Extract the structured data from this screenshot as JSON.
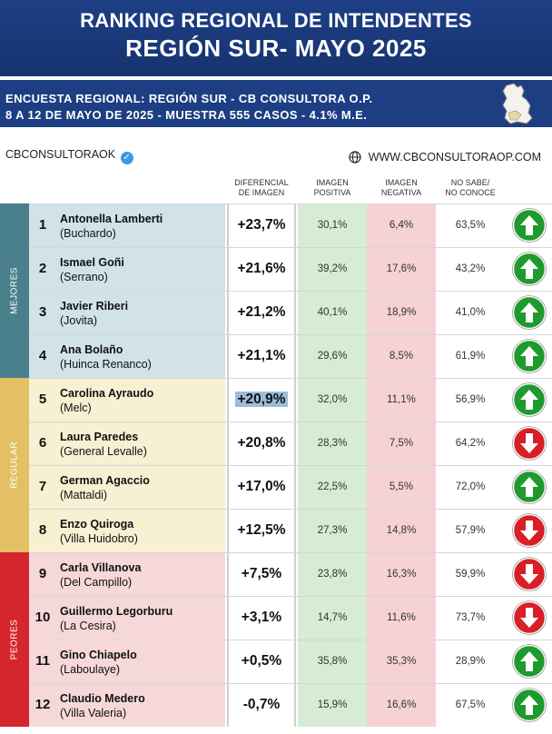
{
  "header": {
    "title_line1": "RANKING REGIONAL DE INTENDENTES",
    "title_line2": "REGIÓN SUR- MAYO 2025"
  },
  "subheader": {
    "line1": "ENCUESTA REGIONAL: REGIÓN SUR - CB CONSULTORA O.P.",
    "line2": "8 A 12 DE MAYO  DE 2025 - MUESTRA 555 CASOS - 4.1% M.E.",
    "map_icon": "province-map-icon"
  },
  "brand": {
    "handle": "CBCONSULTORAOK",
    "verified_icon": "verified-badge-icon",
    "website": "WWW.CBCONSULTORAOP.COM",
    "globe_icon": "globe-icon"
  },
  "columns": {
    "diff": [
      "DIFERENCIAL",
      "DE IMAGEN"
    ],
    "pos": [
      "IMAGEN",
      "POSITIVA"
    ],
    "neg": [
      "IMAGEN",
      "NEGATIVA"
    ],
    "ns": [
      "NO SABE/",
      "NO CONOCE"
    ]
  },
  "groups": [
    {
      "label": "MEJORES",
      "color": "#4a7f8c",
      "row_color": "#d1e3e8",
      "from": 0,
      "to": 3
    },
    {
      "label": "REGULAR",
      "color": "#e2c063",
      "row_color": "#f8f0d3",
      "from": 4,
      "to": 7
    },
    {
      "label": "PEORES",
      "color": "#d6262d",
      "row_color": "#f6d8d9",
      "from": 8,
      "to": 11
    }
  ],
  "colors": {
    "header_blue": "#1e3f86",
    "positive_bg": "#d6ecd4",
    "negative_bg": "#f6d2d4",
    "arrow_up": "#1f9a2e",
    "arrow_down": "#d81f26"
  },
  "chart_data": {
    "type": "table",
    "rows": [
      {
        "rank": "1",
        "name": "Antonella Lamberti",
        "place": "(Buchardo)",
        "diff": "+23,7%",
        "pos": "30,1%",
        "neg": "6,4%",
        "ns": "63,5%",
        "trend": "up"
      },
      {
        "rank": "2",
        "name": "Ismael Goñi",
        "place": "(Serrano)",
        "diff": "+21,6%",
        "pos": "39,2%",
        "neg": "17,6%",
        "ns": "43,2%",
        "trend": "up"
      },
      {
        "rank": "3",
        "name": "Javier Riberi",
        "place": "(Jovita)",
        "diff": "+21,2%",
        "pos": "40,1%",
        "neg": "18,9%",
        "ns": "41,0%",
        "trend": "up"
      },
      {
        "rank": "4",
        "name": "Ana Bolaño",
        "place": "(Huinca Renanco)",
        "diff": "+21,1%",
        "pos": "29,6%",
        "neg": "8,5%",
        "ns": "61,9%",
        "trend": "up"
      },
      {
        "rank": "5",
        "name": "Carolina Ayraudo",
        "place": "(Melc)",
        "diff": "+20,9%",
        "pos": "32,0%",
        "neg": "11,1%",
        "ns": "56,9%",
        "trend": "up",
        "highlight": true
      },
      {
        "rank": "6",
        "name": "Laura Paredes",
        "place": "(General Levalle)",
        "diff": "+20,8%",
        "pos": "28,3%",
        "neg": "7,5%",
        "ns": "64,2%",
        "trend": "down"
      },
      {
        "rank": "7",
        "name": "German Agaccio",
        "place": "(Mattaldi)",
        "diff": "+17,0%",
        "pos": "22,5%",
        "neg": "5,5%",
        "ns": "72,0%",
        "trend": "up"
      },
      {
        "rank": "8",
        "name": "Enzo Quiroga",
        "place": "(Villa Huidobro)",
        "diff": "+12,5%",
        "pos": "27,3%",
        "neg": "14,8%",
        "ns": "57,9%",
        "trend": "down"
      },
      {
        "rank": "9",
        "name": "Carla Villanova",
        "place": "(Del Campillo)",
        "diff": "+7,5%",
        "pos": "23,8%",
        "neg": "16,3%",
        "ns": "59,9%",
        "trend": "down"
      },
      {
        "rank": "10",
        "name": "Guillermo Legorburu",
        "place": "(La Cesira)",
        "diff": "+3,1%",
        "pos": "14,7%",
        "neg": "11,6%",
        "ns": "73,7%",
        "trend": "down"
      },
      {
        "rank": "11",
        "name": "Gino Chiapelo",
        "place": "(Laboulaye)",
        "diff": "+0,5%",
        "pos": "35,8%",
        "neg": "35,3%",
        "ns": "28,9%",
        "trend": "up"
      },
      {
        "rank": "12",
        "name": "Claudio Medero",
        "place": "(Villa Valeria)",
        "diff": "-0,7%",
        "pos": "15,9%",
        "neg": "16,6%",
        "ns": "67,5%",
        "trend": "up"
      }
    ]
  }
}
